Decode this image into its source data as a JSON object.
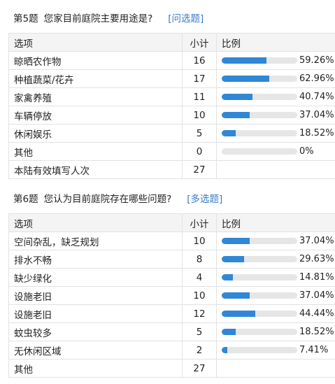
{
  "q5": {
    "number": "第5题",
    "title": "您家目前庭院主要用途是?",
    "type": "[问选题]",
    "headers": {
      "option": "选项",
      "count": "小计",
      "ratio": "比例"
    },
    "rows": [
      {
        "option": "晾晒农作物",
        "count": "16",
        "percent_label": "59.26%",
        "percent": 59.26
      },
      {
        "option": "种植蔬菜/花卉",
        "count": "17",
        "percent_label": "62.96%",
        "percent": 62.96
      },
      {
        "option": "家禽养殖",
        "count": "11",
        "percent_label": "40.74%",
        "percent": 40.74
      },
      {
        "option": "车辆停放",
        "count": "10",
        "percent_label": "37.04%",
        "percent": 37.04
      },
      {
        "option": "休闲娱乐",
        "count": "5",
        "percent_label": "18.52%",
        "percent": 18.52
      },
      {
        "option": "其他",
        "count": "0",
        "percent_label": "0%",
        "percent": 0
      }
    ],
    "footer": {
      "label": "本陆有效填写人次",
      "count": "27"
    }
  },
  "q6": {
    "number": "第6题",
    "title": "您认为目前庭院存在哪些问题?",
    "type": "[多选题]",
    "headers": {
      "option": "选项",
      "count": "小计",
      "ratio": "比例"
    },
    "rows": [
      {
        "option": "空间杂乱，缺乏规划",
        "count": "10",
        "percent_label": "37.04%",
        "percent": 37.04
      },
      {
        "option": "排水不畅",
        "count": "8",
        "percent_label": "29.63%",
        "percent": 29.63
      },
      {
        "option": "缺少绿化",
        "count": "4",
        "percent_label": "14.81%",
        "percent": 14.81
      },
      {
        "option": "设施老旧",
        "count": "10",
        "percent_label": "37.04%",
        "percent": 37.04
      },
      {
        "option": "设施老旧",
        "count": "12",
        "percent_label": "44.44%",
        "percent": 44.44
      },
      {
        "option": "蚊虫较多",
        "count": "5",
        "percent_label": "18.52%",
        "percent": 18.52
      },
      {
        "option": "无休闲区域",
        "count": "2",
        "percent_label": "7.41%",
        "percent": 7.41
      }
    ],
    "footer": {
      "label": "其他",
      "count": "27"
    }
  },
  "colors": {
    "bar_fill": "#2f87d6",
    "bar_track": "#e6e6e6",
    "type_link": "#3a7bc8"
  }
}
